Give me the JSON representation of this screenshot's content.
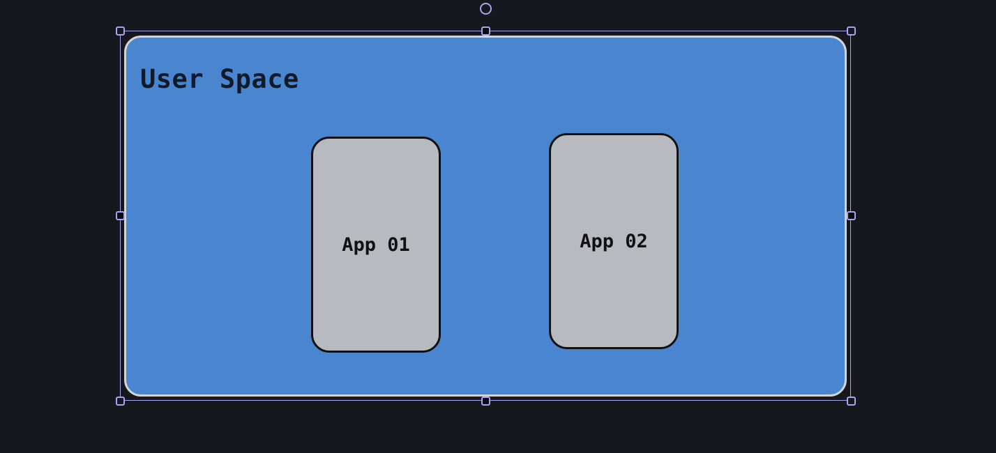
{
  "diagram": {
    "container": {
      "title": "User Space",
      "fill_color": "#4a86d0",
      "stroke_color": "#d4d4d4"
    },
    "apps": [
      {
        "label": "App 01",
        "fill_color": "#b7babf"
      },
      {
        "label": "App 02",
        "fill_color": "#b7babf"
      }
    ],
    "selection": {
      "color": "#a9a4f2"
    }
  }
}
